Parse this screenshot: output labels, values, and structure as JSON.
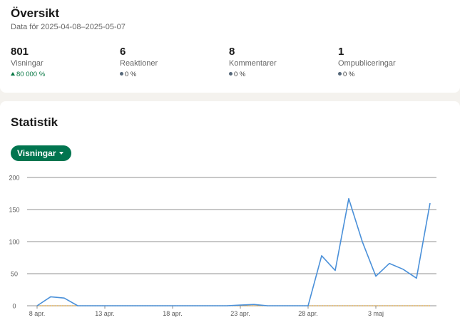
{
  "overview": {
    "title": "Översikt",
    "subtitle": "Data för 2025-04-08–2025-05-07",
    "metrics": [
      {
        "value": "801",
        "label": "Visningar",
        "change": "80 000 %",
        "trend": "up"
      },
      {
        "value": "6",
        "label": "Reaktioner",
        "change": "0 %",
        "trend": "neutral"
      },
      {
        "value": "8",
        "label": "Kommentarer",
        "change": "0 %",
        "trend": "neutral"
      },
      {
        "value": "1",
        "label": "Ompubliceringar",
        "change": "0 %",
        "trend": "neutral"
      }
    ]
  },
  "statistics": {
    "title": "Statistik",
    "dropdown_label": "Visningar"
  },
  "chart_data": {
    "type": "line",
    "x": [
      "8 apr.",
      "9 apr.",
      "10 apr.",
      "11 apr.",
      "12 apr.",
      "13 apr.",
      "14 apr.",
      "15 apr.",
      "16 apr.",
      "17 apr.",
      "18 apr.",
      "19 apr.",
      "20 apr.",
      "21 apr.",
      "22 apr.",
      "23 apr.",
      "24 apr.",
      "25 apr.",
      "26 apr.",
      "27 apr.",
      "28 apr.",
      "29 apr.",
      "30 apr.",
      "1 maj",
      "2 maj",
      "3 maj",
      "4 maj",
      "5 maj",
      "6 maj",
      "7 maj"
    ],
    "series": [
      {
        "values": [
          0,
          14,
          12,
          0,
          0,
          0,
          0,
          0,
          0,
          0,
          0,
          0,
          0,
          0,
          0,
          1,
          2,
          0,
          0,
          0,
          0,
          78,
          55,
          167,
          100,
          46,
          66,
          57,
          43,
          160
        ],
        "color": "#4a90d9"
      },
      {
        "values": [
          0,
          0,
          0,
          0,
          0,
          0,
          0,
          0,
          0,
          0,
          0,
          0,
          0,
          0,
          0,
          0,
          0,
          0,
          0,
          0,
          0,
          0,
          0,
          0,
          0,
          0,
          0,
          0,
          0,
          0
        ],
        "color": "#e0a030"
      }
    ],
    "x_ticks": [
      "8 apr.",
      "13 apr.",
      "18 apr.",
      "23 apr.",
      "28 apr.",
      "3 maj"
    ],
    "y_ticks": [
      0,
      50,
      100,
      150,
      200
    ],
    "ylim": [
      0,
      200
    ],
    "grid": true
  },
  "colors": {
    "accent": "#01754f",
    "positive": "#057642",
    "line": "#4a90d9",
    "baseline": "#e0a030"
  }
}
